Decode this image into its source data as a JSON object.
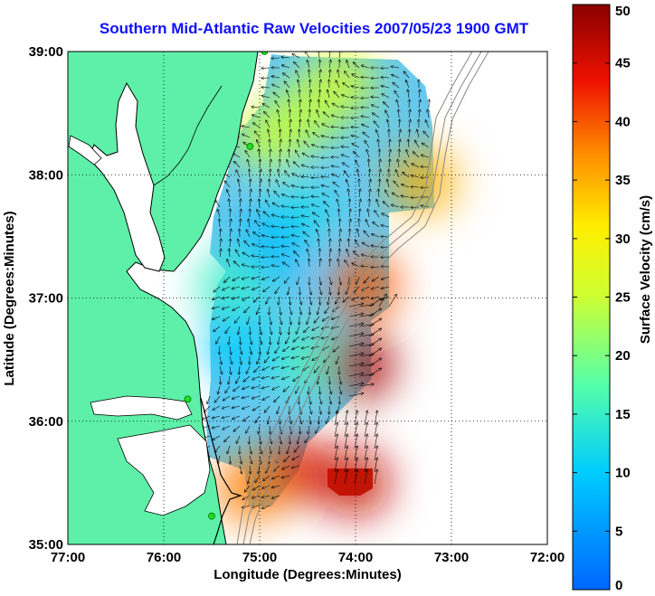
{
  "title": "Southern Mid-Atlantic Raw Velocities 2007/05/23 1900 GMT",
  "chart_data": {
    "type": "map",
    "xlabel": "Longitude (Degrees:Minutes)",
    "ylabel": "Latitude (Degrees:Minutes)",
    "xlim": [
      -77,
      -72
    ],
    "ylim": [
      35,
      39
    ],
    "x_ticks": [
      {
        "value": -77,
        "label": "77:00"
      },
      {
        "value": -76,
        "label": "76:00"
      },
      {
        "value": -75,
        "label": "75:00"
      },
      {
        "value": -74,
        "label": "74:00"
      },
      {
        "value": -73,
        "label": "73:00"
      },
      {
        "value": -72,
        "label": "72:00"
      }
    ],
    "y_ticks": [
      {
        "value": 39,
        "label": "39:00"
      },
      {
        "value": 38,
        "label": "38:00"
      },
      {
        "value": 37,
        "label": "37:00"
      },
      {
        "value": 36,
        "label": "36:00"
      },
      {
        "value": 35,
        "label": "35:00"
      }
    ],
    "grid": true,
    "colorbar": {
      "label": "Surface Velocity (cm/s)",
      "range": [
        0,
        50
      ],
      "ticks": [
        {
          "value": 50,
          "label": "50"
        },
        {
          "value": 45,
          "label": "45"
        },
        {
          "value": 40,
          "label": "40"
        },
        {
          "value": 35,
          "label": "35"
        },
        {
          "value": 30,
          "label": "30"
        },
        {
          "value": 25,
          "label": "25"
        },
        {
          "value": 20,
          "label": "20"
        },
        {
          "value": 15,
          "label": "15"
        },
        {
          "value": 10,
          "label": "10"
        },
        {
          "value": 5,
          "label": "5"
        },
        {
          "value": 0,
          "label": "0"
        }
      ],
      "colormap": "jet"
    },
    "colors": {
      "land": "#5ef0a8",
      "coast": "#000000",
      "isobath": "#888888",
      "station": "#22dd22",
      "title": "#1010ff"
    },
    "stations": [
      {
        "lon": -74.95,
        "lat": 39.0
      },
      {
        "lon": -75.1,
        "lat": 38.23
      },
      {
        "lon": -75.75,
        "lat": 36.18
      },
      {
        "lon": -75.5,
        "lat": 35.23
      }
    ],
    "velocity_regions": [
      {
        "lon": -74.5,
        "lat": 38.5,
        "speed": 24
      },
      {
        "lon": -74.15,
        "lat": 38.75,
        "speed": 26
      },
      {
        "lon": -74.9,
        "lat": 38.3,
        "speed": 25
      },
      {
        "lon": -73.3,
        "lat": 37.95,
        "speed": 35
      },
      {
        "lon": -74.6,
        "lat": 37.7,
        "speed": 12
      },
      {
        "lon": -74.9,
        "lat": 37.4,
        "speed": 8
      },
      {
        "lon": -75.3,
        "lat": 37.1,
        "speed": 15
      },
      {
        "lon": -73.9,
        "lat": 37.1,
        "speed": 40
      },
      {
        "lon": -75.2,
        "lat": 36.6,
        "speed": 10
      },
      {
        "lon": -74.5,
        "lat": 36.5,
        "speed": 16
      },
      {
        "lon": -73.95,
        "lat": 36.45,
        "speed": 48
      },
      {
        "lon": -74.6,
        "lat": 35.6,
        "speed": 45
      },
      {
        "lon": -74.0,
        "lat": 35.5,
        "speed": 46
      },
      {
        "lon": -75.1,
        "lat": 35.45,
        "speed": 38
      }
    ]
  }
}
